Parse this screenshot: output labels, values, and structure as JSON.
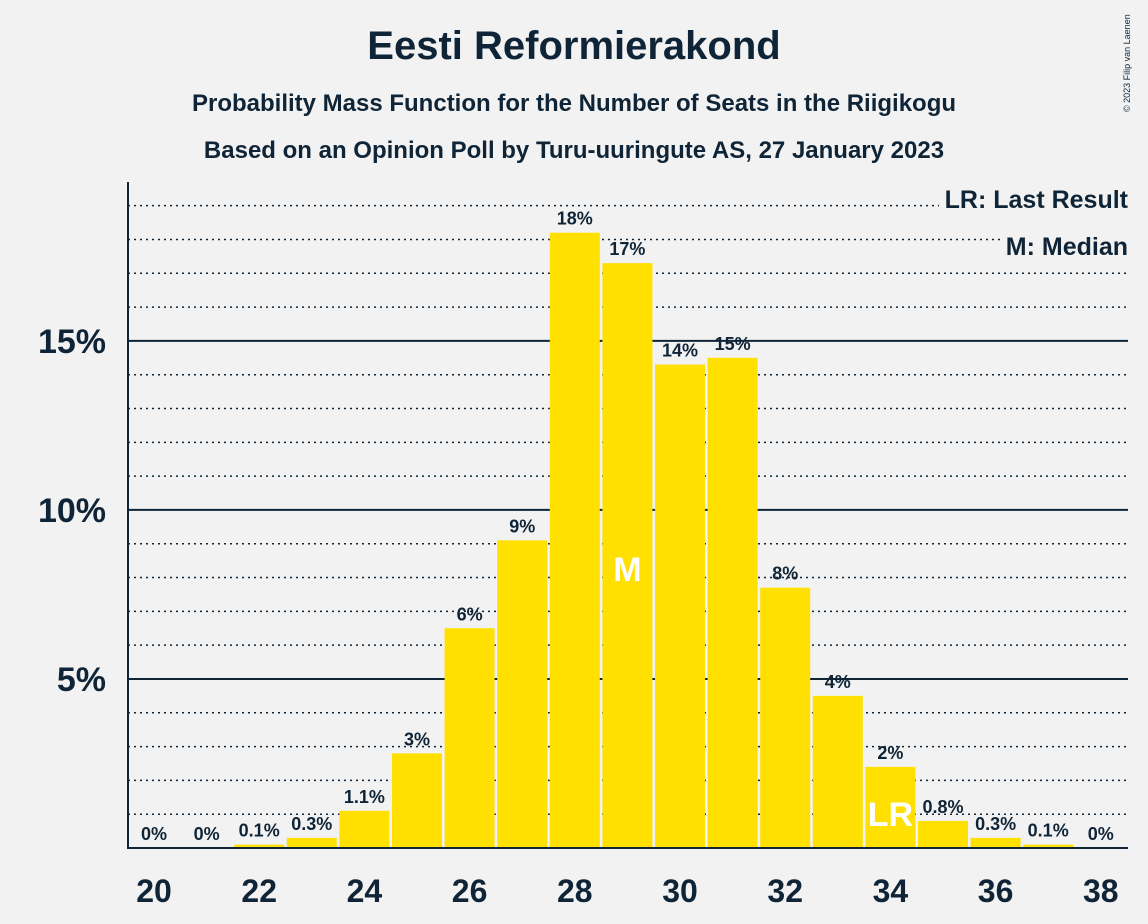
{
  "title": "Eesti Reformierakond",
  "subtitle": "Probability Mass Function for the Number of Seats in the Riigikogu",
  "subtitle2": "Based on an Opinion Poll by Turu-uuringute AS, 27 January 2023",
  "copyright": "© 2023 Filip van Laenen",
  "legend": {
    "last_result": "LR: Last Result",
    "median": "M: Median"
  },
  "colors": {
    "bar": "#ffe000",
    "text": "#0f2537",
    "background": "#f2f2f2"
  },
  "chart_data": {
    "type": "bar",
    "title": "Eesti Reformierakond",
    "x": [
      20,
      21,
      22,
      23,
      24,
      25,
      26,
      27,
      28,
      29,
      30,
      31,
      32,
      33,
      34,
      35,
      36,
      37,
      38
    ],
    "values": [
      0,
      0,
      0.1,
      0.3,
      1.1,
      2.8,
      6.5,
      9.1,
      18.2,
      17.3,
      14.3,
      14.5,
      7.7,
      4.5,
      2.4,
      0.8,
      0.3,
      0.1,
      0
    ],
    "labels": [
      "0%",
      "0%",
      "0.1%",
      "0.3%",
      "1.1%",
      "3%",
      "6%",
      "9%",
      "18%",
      "17%",
      "14%",
      "15%",
      "8%",
      "4%",
      "2%",
      "0.8%",
      "0.3%",
      "0.1%",
      "0%"
    ],
    "x_ticks": [
      "20",
      "22",
      "24",
      "26",
      "28",
      "30",
      "32",
      "34",
      "36",
      "38"
    ],
    "y_ticks": [
      "5%",
      "10%",
      "15%"
    ],
    "y_tick_values": [
      5,
      10,
      15
    ],
    "ylim": [
      0,
      19.7
    ],
    "median_seats": 29,
    "median_marker": "M",
    "last_result_seats": 34,
    "last_result_marker": "LR",
    "grid": "dotted every 1%, solid every 5%",
    "legend_position": "top-right"
  }
}
